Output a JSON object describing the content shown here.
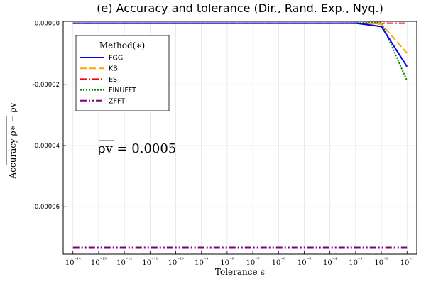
{
  "chart_data": {
    "type": "line",
    "title": "(e) Accuracy and tolerance (Dir., Rand. Exp., Nyq.)",
    "xlabel": "Tolerance ϵ",
    "ylabel": "Accuracy ρ∗ − ρv",
    "x_scale": "log",
    "x_tick_labels": [
      "10⁻¹⁴",
      "10⁻¹³",
      "10⁻¹²",
      "10⁻¹¹",
      "10⁻¹⁰",
      "10⁻⁹",
      "10⁻⁸",
      "10⁻⁷",
      "10⁻⁶",
      "10⁻⁵",
      "10⁻⁴",
      "10⁻³",
      "10⁻²",
      "10⁻¹"
    ],
    "y_ticks": [
      0.0,
      -2e-05,
      -4e-05,
      -6e-05
    ],
    "y_tick_labels": [
      "0.00000",
      "-0.00002",
      "-0.00004",
      "-0.00006"
    ],
    "ylim": [
      -7.55e-05,
      6e-07
    ],
    "grid": true,
    "legend_title": "Method(∗)",
    "legend_position": "top-left",
    "annotation": "ρv = 0.0005",
    "x": [
      1e-14,
      1e-13,
      1e-12,
      1e-11,
      1e-10,
      1e-09,
      1e-08,
      1e-07,
      1e-06,
      1e-05,
      0.0001,
      0.001,
      0.01,
      0.1
    ],
    "series": [
      {
        "name": "FGG",
        "color": "#0000ff",
        "dash": "solid",
        "values": [
          0,
          0,
          0,
          0,
          0,
          0,
          0,
          0,
          0,
          0,
          0,
          0,
          -1.1e-06,
          -1.42e-05
        ]
      },
      {
        "name": "KB",
        "color": "#ffa500",
        "dash": "dash",
        "values": [
          0,
          0,
          0,
          0,
          0,
          0,
          0,
          0,
          0,
          0,
          0,
          0,
          -3e-07,
          -9.8e-06
        ]
      },
      {
        "name": "ES",
        "color": "#ff0000",
        "dash": "dashdot",
        "values": [
          0,
          0,
          0,
          0,
          0,
          0,
          0,
          0,
          0,
          0,
          0,
          0,
          0,
          0
        ]
      },
      {
        "name": "FINUFFT",
        "color": "#008000",
        "dash": "dot",
        "values": [
          0,
          0,
          0,
          0,
          0,
          0,
          0,
          0,
          0,
          0,
          0,
          1e-07,
          2e-07,
          -1.88e-05
        ]
      },
      {
        "name": "ZFFT",
        "color": "#800080",
        "dash": "dashdotdot",
        "values": [
          -7.33e-05,
          -7.33e-05,
          -7.33e-05,
          -7.33e-05,
          -7.33e-05,
          -7.33e-05,
          -7.33e-05,
          -7.33e-05,
          -7.33e-05,
          -7.33e-05,
          -7.33e-05,
          -7.33e-05,
          -7.33e-05,
          -7.33e-05
        ]
      }
    ]
  }
}
